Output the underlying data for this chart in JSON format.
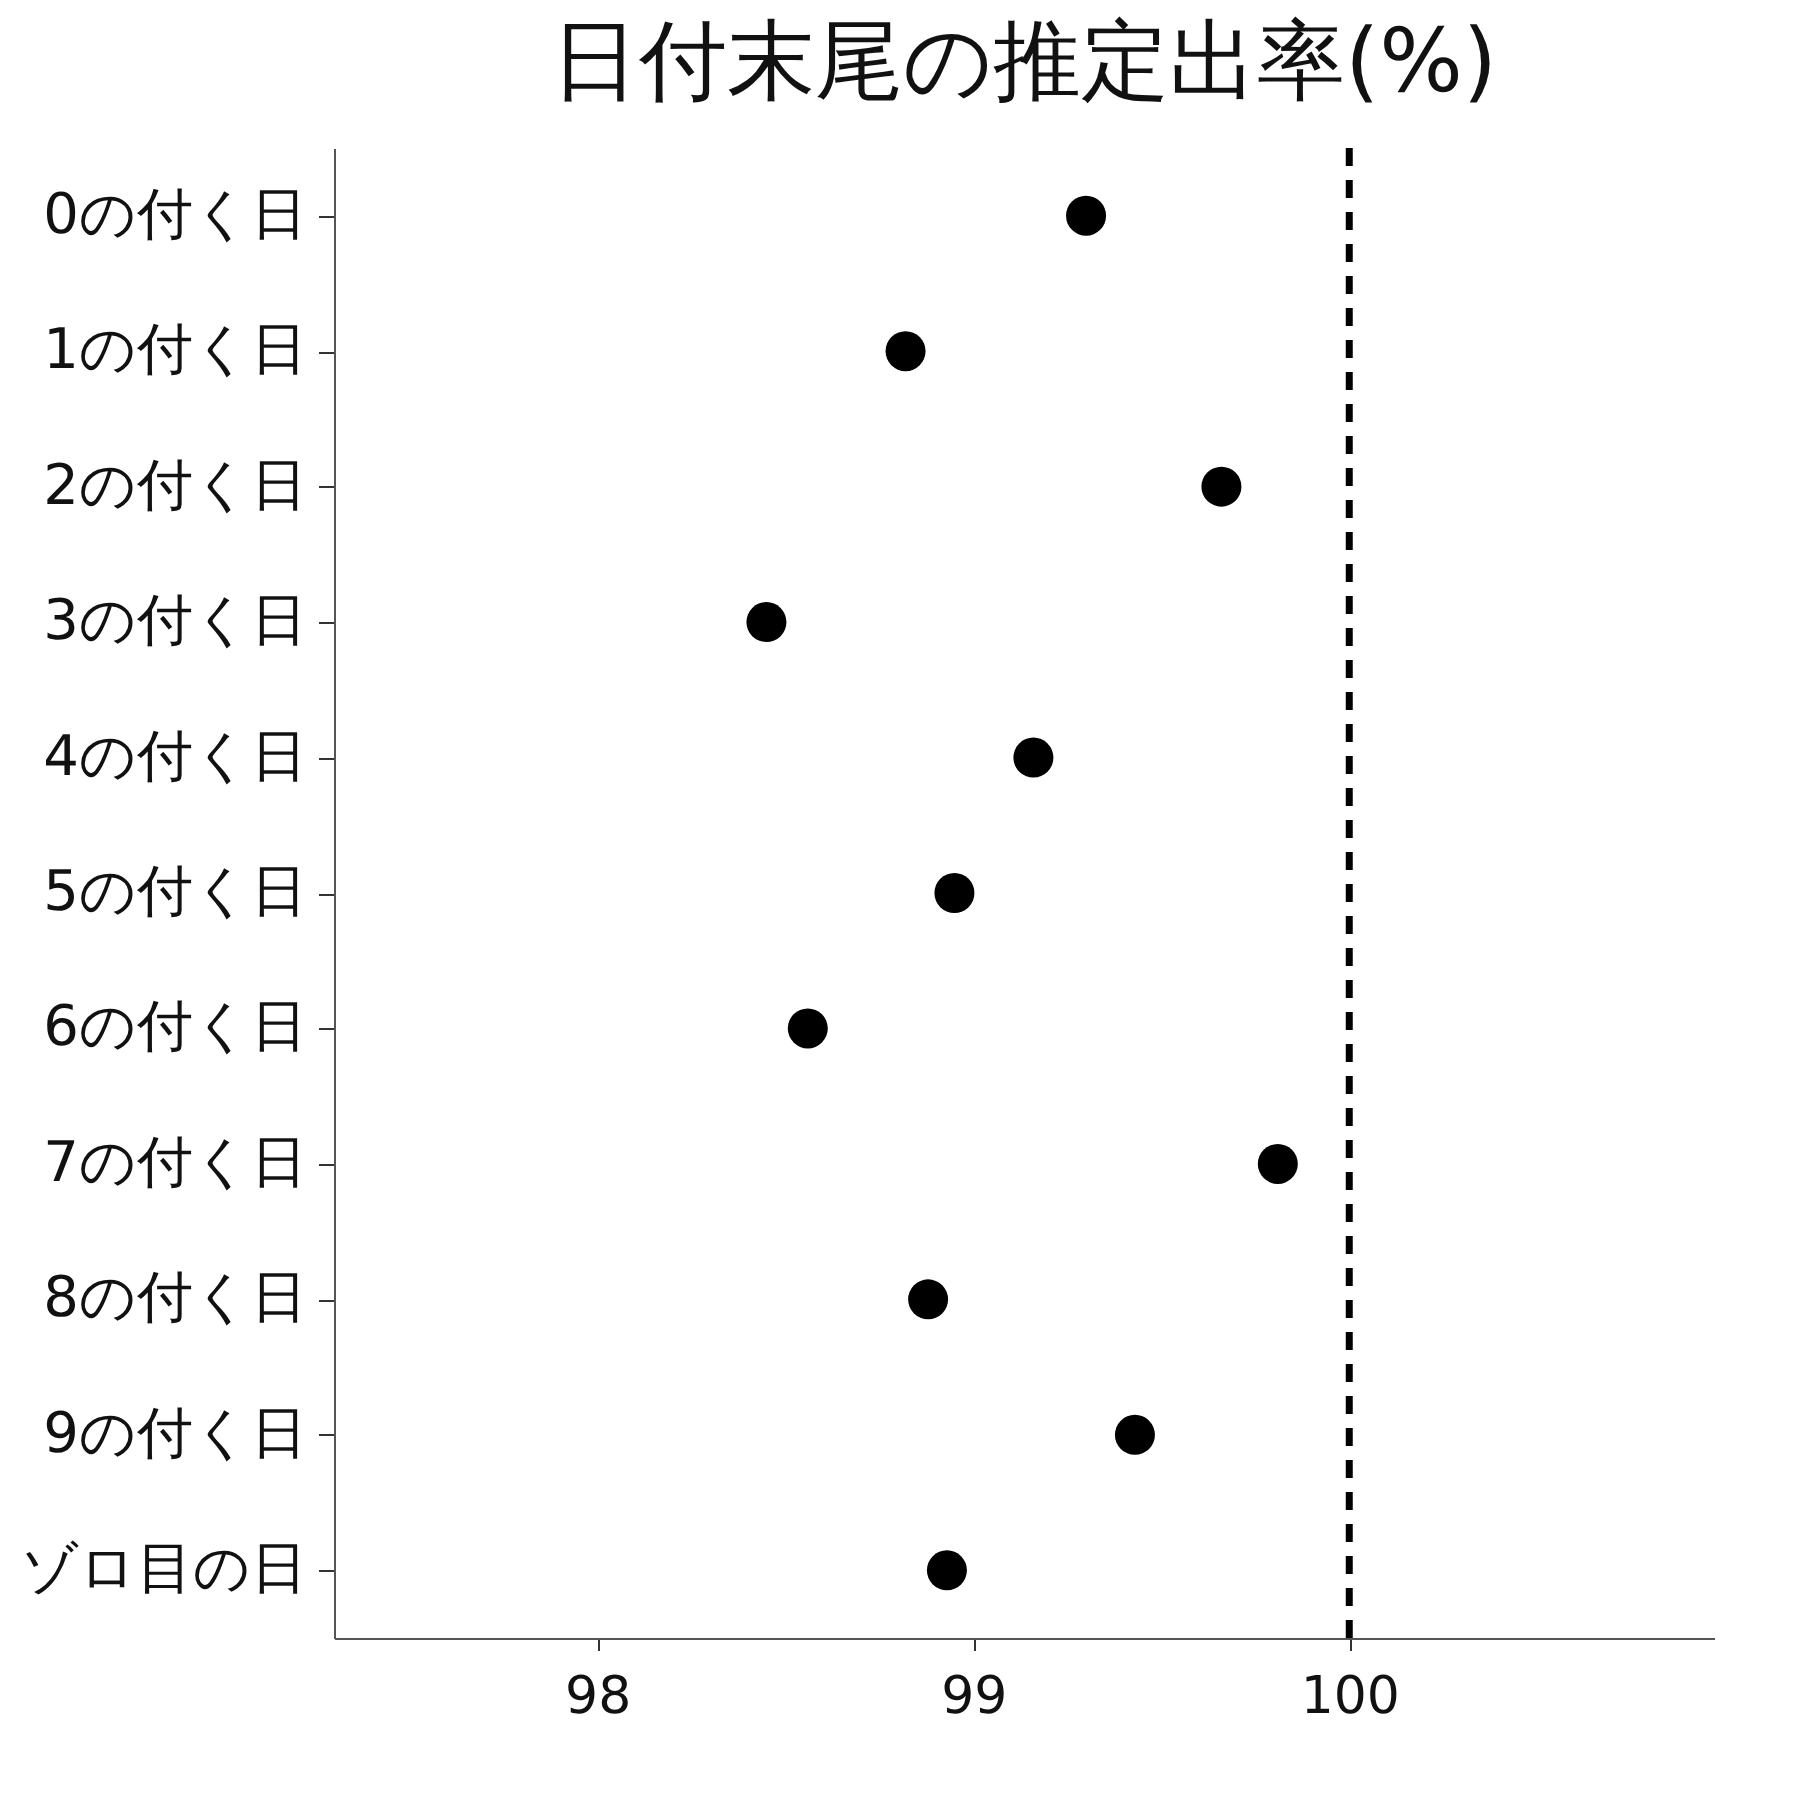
{
  "chart_data": {
    "type": "scatter",
    "title": "日付末尾の推定出率(%)",
    "orientation": "horizontal",
    "marker": "circle",
    "categories": [
      "0の付く日",
      "1の付く日",
      "2の付く日",
      "3の付く日",
      "4の付く日",
      "5の付く日",
      "6の付く日",
      "7の付く日",
      "8の付く日",
      "9の付く日",
      "ゾロ目の日"
    ],
    "series": [
      {
        "color": "#000000",
        "values": [
          99.3,
          98.82,
          99.66,
          98.45,
          99.16,
          98.95,
          98.56,
          99.81,
          98.88,
          99.43,
          98.93
        ]
      }
    ],
    "xlim": [
      97.3,
      100.97
    ],
    "xticks": [
      98,
      99,
      100
    ],
    "ref_lines": [
      {
        "axis": "x",
        "value": 100,
        "line_style": "dashed",
        "color": "#000000"
      }
    ]
  }
}
